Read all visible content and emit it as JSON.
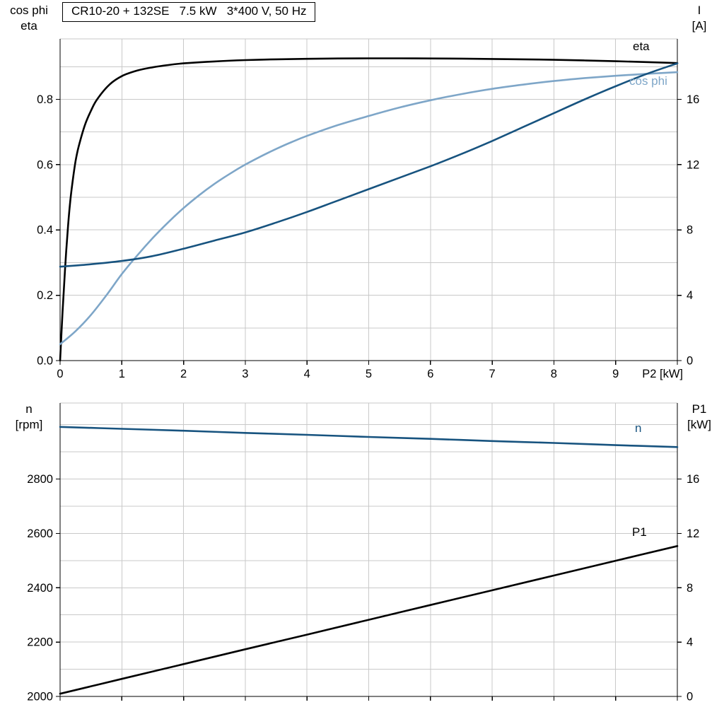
{
  "title_box": "CR10-20 + 132SE   7.5 kW   3*400 V, 50 Hz",
  "colors": {
    "black": "#000000",
    "dark_blue": "#17537f",
    "light_blue": "#7ea6c8",
    "grid": "#c9c9c9",
    "axis": "#000000",
    "background": "#ffffff"
  },
  "chart_data": [
    {
      "type": "line",
      "name": "motor-efficiency-cosphi-current",
      "x_axis": {
        "min": 0,
        "max": 10,
        "grid_step": 1,
        "tick_values": [
          0,
          1,
          2,
          3,
          4,
          5,
          6,
          7,
          8,
          9
        ],
        "tick_labels": [
          "0",
          "1",
          "2",
          "3",
          "4",
          "5",
          "6",
          "7",
          "8",
          "9"
        ],
        "end_label": "P2 [kW]"
      },
      "left_axis": {
        "label": [
          "cos phi",
          "eta"
        ],
        "min": 0,
        "max": 0.985,
        "minor_step": 0.1,
        "tick_values": [
          0,
          0.2,
          0.4,
          0.6,
          0.8
        ],
        "tick_labels": [
          "0.0",
          "0.2",
          "0.4",
          "0.6",
          "0.8"
        ]
      },
      "right_axis": {
        "label": [
          "I",
          "[A]"
        ],
        "min": 0,
        "max": 19.7,
        "tick_values": [
          0,
          4,
          8,
          12,
          16
        ],
        "tick_labels": [
          "0",
          "4",
          "8",
          "12",
          "16"
        ]
      },
      "series": [
        {
          "name": "eta",
          "label": "eta",
          "axis": "left",
          "color": "#000000",
          "x": [
            0,
            0.04,
            0.08,
            0.12,
            0.16,
            0.2,
            0.25,
            0.3,
            0.4,
            0.5,
            0.6,
            0.8,
            1,
            1.25,
            1.5,
            1.75,
            2,
            2.5,
            3,
            3.5,
            4,
            4.5,
            5,
            5.5,
            6,
            6.5,
            7,
            7.5,
            8,
            8.5,
            9,
            9.5,
            10
          ],
          "y": [
            0,
            0.15,
            0.28,
            0.39,
            0.48,
            0.545,
            0.61,
            0.655,
            0.72,
            0.765,
            0.8,
            0.845,
            0.871,
            0.888,
            0.898,
            0.905,
            0.91,
            0.916,
            0.92,
            0.9225,
            0.924,
            0.925,
            0.9255,
            0.9255,
            0.925,
            0.9245,
            0.9235,
            0.9225,
            0.921,
            0.919,
            0.9165,
            0.914,
            0.911
          ]
        },
        {
          "name": "cos phi",
          "label": "cos phi",
          "axis": "left",
          "color": "#7ea6c8",
          "x": [
            0,
            0.25,
            0.5,
            0.75,
            1,
            1.25,
            1.5,
            1.75,
            2,
            2.25,
            2.5,
            2.75,
            3,
            3.25,
            3.5,
            3.75,
            4,
            4.5,
            5,
            5.5,
            6,
            6.5,
            7,
            7.5,
            8,
            8.5,
            9,
            9.5,
            10
          ],
          "y": [
            0.05,
            0.09,
            0.14,
            0.2,
            0.265,
            0.322,
            0.375,
            0.423,
            0.467,
            0.506,
            0.541,
            0.572,
            0.6,
            0.625,
            0.648,
            0.669,
            0.688,
            0.721,
            0.749,
            0.775,
            0.797,
            0.816,
            0.832,
            0.845,
            0.856,
            0.865,
            0.872,
            0.878,
            0.883
          ]
        },
        {
          "name": "I",
          "label": "",
          "axis": "right",
          "color": "#17537f",
          "x": [
            0,
            0.5,
            1,
            1.5,
            2,
            2.5,
            3,
            3.5,
            4,
            4.5,
            5,
            5.5,
            6,
            6.5,
            7,
            7.5,
            8,
            8.5,
            9,
            9.5,
            10
          ],
          "y": [
            5.75,
            5.9,
            6.1,
            6.4,
            6.85,
            7.35,
            7.85,
            8.45,
            9.1,
            9.8,
            10.5,
            11.2,
            11.9,
            12.65,
            13.45,
            14.3,
            15.15,
            16.0,
            16.8,
            17.55,
            18.2
          ]
        }
      ]
    },
    {
      "type": "line",
      "name": "speed-and-input-power",
      "x_axis": {
        "min": 0,
        "max": 10,
        "grid_step": 1,
        "tick_values": [
          0,
          1,
          2,
          3,
          4,
          5,
          6,
          7,
          8,
          9
        ],
        "tick_labels": [],
        "end_label": ""
      },
      "left_axis": {
        "label": [
          "n",
          "[rpm]"
        ],
        "min": 2000,
        "max": 3080,
        "minor_step": 100,
        "tick_values": [
          2000,
          2200,
          2400,
          2600,
          2800
        ],
        "tick_labels": [
          "2000",
          "2200",
          "2400",
          "2600",
          "2800"
        ]
      },
      "right_axis": {
        "label": [
          "P1",
          "[kW]"
        ],
        "min": 0,
        "max": 21.6,
        "tick_values": [
          0,
          4,
          8,
          12,
          16
        ],
        "tick_labels": [
          "0",
          "4",
          "8",
          "12",
          "16"
        ]
      },
      "series": [
        {
          "name": "n",
          "label": "n",
          "axis": "left",
          "color": "#17537f",
          "x": [
            0,
            1,
            2,
            3,
            4,
            5,
            6,
            7,
            8,
            9,
            10
          ],
          "y": [
            2992,
            2985,
            2978,
            2970,
            2963,
            2955,
            2948,
            2940,
            2933,
            2925,
            2918
          ]
        },
        {
          "name": "P1",
          "label": "P1",
          "axis": "right",
          "color": "#000000",
          "x": [
            0,
            1,
            2,
            3,
            4,
            5,
            6,
            7,
            8,
            9,
            10
          ],
          "y": [
            0.2,
            1.29,
            2.38,
            3.47,
            4.55,
            5.64,
            6.73,
            7.81,
            8.9,
            9.99,
            11.07
          ]
        }
      ]
    }
  ]
}
